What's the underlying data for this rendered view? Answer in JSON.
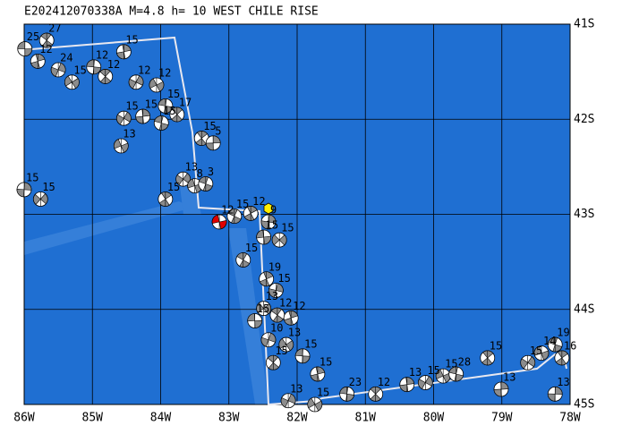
{
  "map": {
    "title": "E202412070338A  M=4.8  h= 10 WEST CHILE RISE",
    "lon_range": [
      -86,
      -78
    ],
    "lat_range": [
      -41,
      -45
    ],
    "lon_ticks": [
      {
        "value": -86,
        "label": "86W"
      },
      {
        "value": -85,
        "label": "85W"
      },
      {
        "value": -84,
        "label": "84W"
      },
      {
        "value": -83,
        "label": "83W"
      },
      {
        "value": -82,
        "label": "82W"
      },
      {
        "value": -81,
        "label": "81W"
      },
      {
        "value": -80,
        "label": "80W"
      },
      {
        "value": -79,
        "label": "79W"
      },
      {
        "value": -78,
        "label": "78W"
      }
    ],
    "lat_ticks": [
      {
        "value": -41,
        "label": "41S"
      },
      {
        "value": -42,
        "label": "42S"
      },
      {
        "value": -43,
        "label": "43S"
      },
      {
        "value": -44,
        "label": "44S"
      },
      {
        "value": -45,
        "label": "45S"
      }
    ],
    "ocean_color": "#1f6fd2",
    "event_color": "#8c8c8c",
    "events": [
      {
        "lon": -85.99,
        "lat": -41.26,
        "depth": 25
      },
      {
        "lon": -85.67,
        "lat": -41.17,
        "depth": 27
      },
      {
        "lon": -85.8,
        "lat": -41.39,
        "depth": 12
      },
      {
        "lon": -85.5,
        "lat": -41.48,
        "depth": 24
      },
      {
        "lon": -85.3,
        "lat": -41.61,
        "depth": 15
      },
      {
        "lon": -84.98,
        "lat": -41.45,
        "depth": 12
      },
      {
        "lon": -84.81,
        "lat": -41.55,
        "depth": 12
      },
      {
        "lon": -84.54,
        "lat": -41.29,
        "depth": 15
      },
      {
        "lon": -84.36,
        "lat": -41.61,
        "depth": 12
      },
      {
        "lon": -84.06,
        "lat": -41.64,
        "depth": 12
      },
      {
        "lon": -83.93,
        "lat": -41.86,
        "depth": 15
      },
      {
        "lon": -83.76,
        "lat": -41.95,
        "depth": 17
      },
      {
        "lon": -84.26,
        "lat": -41.97,
        "depth": 15
      },
      {
        "lon": -84.54,
        "lat": -41.99,
        "depth": 15
      },
      {
        "lon": -84.58,
        "lat": -42.28,
        "depth": 13
      },
      {
        "lon": -83.99,
        "lat": -42.04,
        "depth": 15
      },
      {
        "lon": -83.4,
        "lat": -42.2,
        "depth": 15
      },
      {
        "lon": -83.23,
        "lat": -42.25,
        "depth": 5
      },
      {
        "lon": -83.67,
        "lat": -42.63,
        "depth": 13
      },
      {
        "lon": -83.5,
        "lat": -42.7,
        "depth": 8
      },
      {
        "lon": -83.34,
        "lat": -42.68,
        "depth": 3
      },
      {
        "lon": -83.93,
        "lat": -42.84,
        "depth": 15
      },
      {
        "lon": -86.0,
        "lat": -42.74,
        "depth": 15
      },
      {
        "lon": -85.76,
        "lat": -42.84,
        "depth": 15
      },
      {
        "lon": -83.14,
        "lat": -43.08,
        "depth": 12,
        "color": "#e00000"
      },
      {
        "lon": -82.92,
        "lat": -43.02,
        "depth": 15
      },
      {
        "lon": -82.68,
        "lat": -42.99,
        "depth": 12
      },
      {
        "lon": -82.42,
        "lat": -43.08,
        "depth": 9
      },
      {
        "lon": -82.26,
        "lat": -43.27,
        "depth": 15
      },
      {
        "lon": -82.49,
        "lat": -43.24,
        "depth": 15
      },
      {
        "lon": -82.79,
        "lat": -43.48,
        "depth": 15
      },
      {
        "lon": -82.45,
        "lat": -43.68,
        "depth": 19
      },
      {
        "lon": -82.31,
        "lat": -43.8,
        "depth": 15
      },
      {
        "lon": -82.49,
        "lat": -43.99,
        "depth": 13
      },
      {
        "lon": -82.62,
        "lat": -44.12,
        "depth": 15
      },
      {
        "lon": -82.29,
        "lat": -44.06,
        "depth": 12
      },
      {
        "lon": -82.09,
        "lat": -44.09,
        "depth": 12
      },
      {
        "lon": -82.42,
        "lat": -44.32,
        "depth": 10
      },
      {
        "lon": -82.16,
        "lat": -44.37,
        "depth": 13
      },
      {
        "lon": -81.92,
        "lat": -44.49,
        "depth": 15
      },
      {
        "lon": -82.35,
        "lat": -44.56,
        "depth": 15
      },
      {
        "lon": -81.7,
        "lat": -44.68,
        "depth": 15
      },
      {
        "lon": -82.13,
        "lat": -44.96,
        "depth": 13
      },
      {
        "lon": -81.74,
        "lat": -45.0,
        "depth": 15
      },
      {
        "lon": -81.27,
        "lat": -44.89,
        "depth": 23
      },
      {
        "lon": -80.85,
        "lat": -44.89,
        "depth": 12
      },
      {
        "lon": -80.39,
        "lat": -44.79,
        "depth": 13
      },
      {
        "lon": -80.12,
        "lat": -44.77,
        "depth": 15
      },
      {
        "lon": -79.86,
        "lat": -44.7,
        "depth": 15
      },
      {
        "lon": -79.67,
        "lat": -44.68,
        "depth": 28
      },
      {
        "lon": -79.21,
        "lat": -44.51,
        "depth": 15
      },
      {
        "lon": -79.01,
        "lat": -44.84,
        "depth": 13
      },
      {
        "lon": -78.62,
        "lat": -44.56,
        "depth": 15
      },
      {
        "lon": -78.42,
        "lat": -44.46,
        "depth": 14
      },
      {
        "lon": -78.22,
        "lat": -44.37,
        "depth": 19
      },
      {
        "lon": -78.12,
        "lat": -44.51,
        "depth": 16
      },
      {
        "lon": -78.22,
        "lat": -44.89,
        "depth": 13
      }
    ]
  }
}
